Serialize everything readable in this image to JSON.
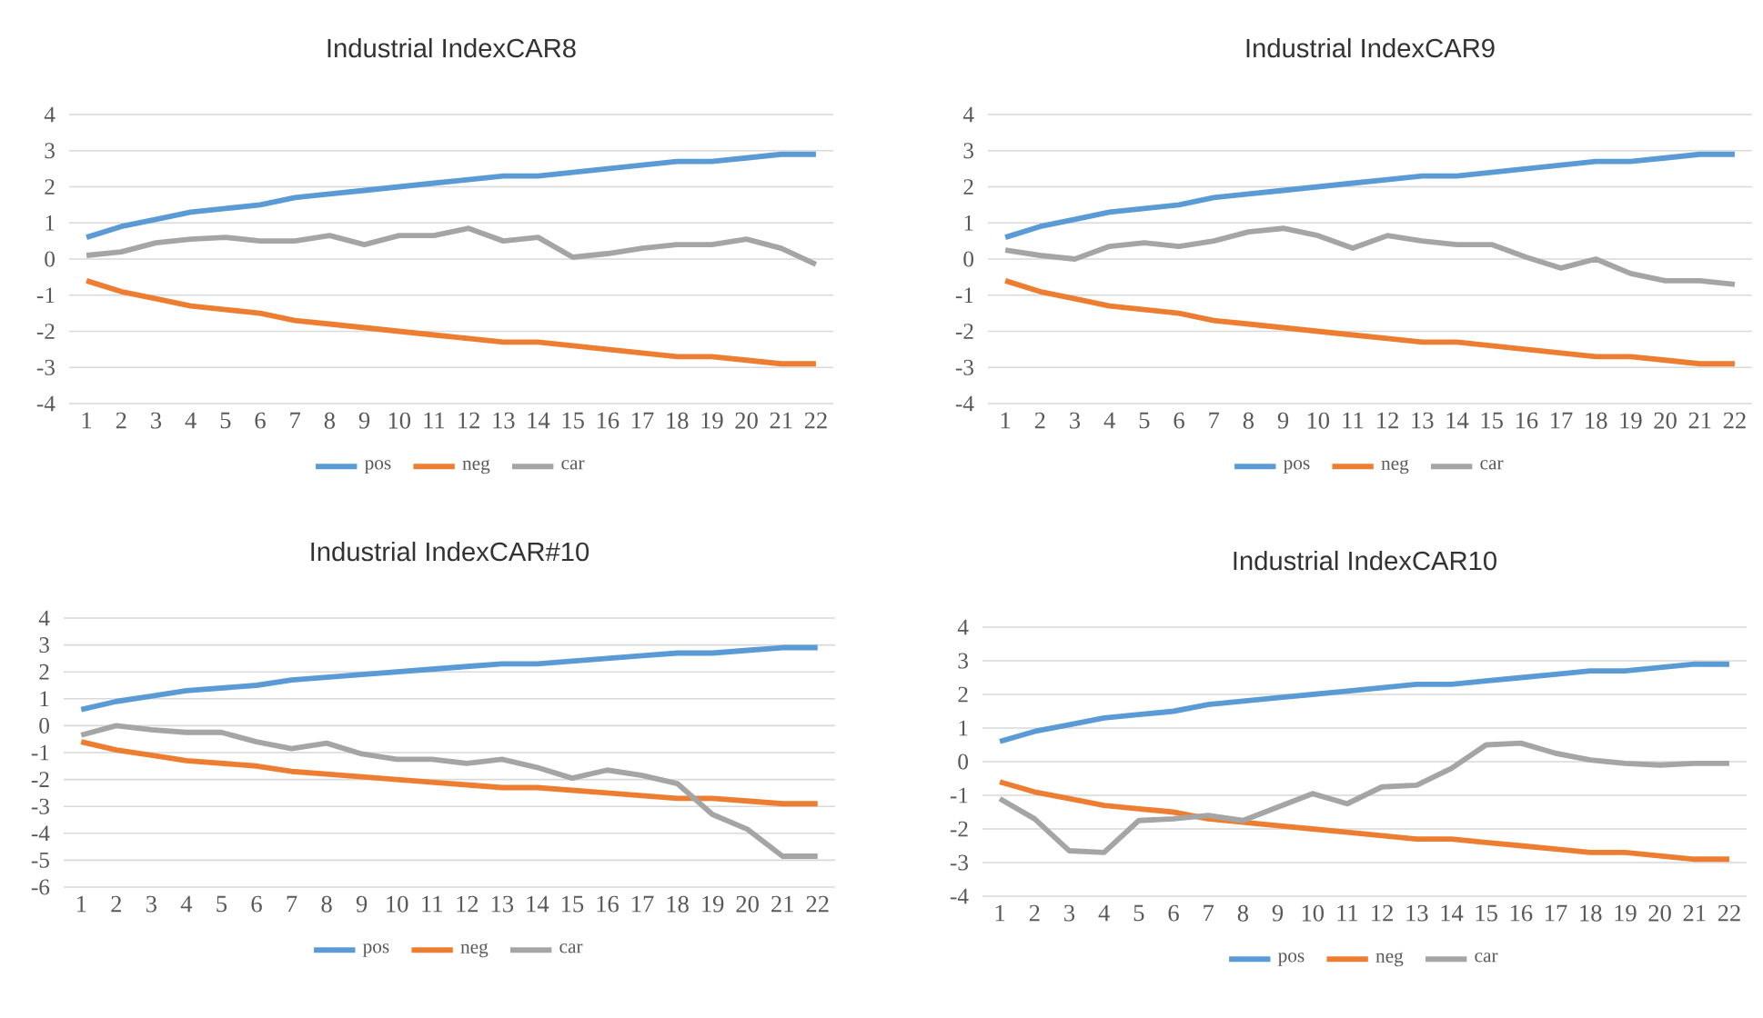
{
  "chart_data": [
    {
      "type": "line",
      "title": "Industrial IndexCAR8",
      "categories": [
        "1",
        "2",
        "3",
        "4",
        "5",
        "6",
        "7",
        "8",
        "9",
        "10",
        "11",
        "12",
        "13",
        "14",
        "15",
        "16",
        "17",
        "18",
        "19",
        "20",
        "21",
        "22"
      ],
      "series": [
        {
          "name": "pos",
          "color": "#5b9bd5",
          "values": [
            0.6,
            0.9,
            1.1,
            1.3,
            1.4,
            1.5,
            1.7,
            1.8,
            1.9,
            2.0,
            2.1,
            2.2,
            2.3,
            2.3,
            2.4,
            2.5,
            2.6,
            2.7,
            2.7,
            2.8,
            2.9,
            2.9
          ]
        },
        {
          "name": "neg",
          "color": "#ed7d31",
          "values": [
            -0.6,
            -0.9,
            -1.1,
            -1.3,
            -1.4,
            -1.5,
            -1.7,
            -1.8,
            -1.9,
            -2.0,
            -2.1,
            -2.2,
            -2.3,
            -2.3,
            -2.4,
            -2.5,
            -2.6,
            -2.7,
            -2.7,
            -2.8,
            -2.9,
            -2.9
          ]
        },
        {
          "name": "car",
          "color": "#a5a5a5",
          "values": [
            0.1,
            0.2,
            0.45,
            0.55,
            0.6,
            0.5,
            0.5,
            0.65,
            0.4,
            0.65,
            0.65,
            0.85,
            0.5,
            0.6,
            0.05,
            0.15,
            0.3,
            0.4,
            0.4,
            0.55,
            0.3,
            -0.15
          ]
        }
      ],
      "ylim": [
        -4,
        4
      ],
      "yticks": [
        -4,
        -3,
        -2,
        -1,
        0,
        1,
        2,
        3,
        4
      ],
      "grid": "y",
      "legend": "bottom"
    },
    {
      "type": "line",
      "title": "Industrial IndexCAR9",
      "categories": [
        "1",
        "2",
        "3",
        "4",
        "5",
        "6",
        "7",
        "8",
        "9",
        "10",
        "11",
        "12",
        "13",
        "14",
        "15",
        "16",
        "17",
        "18",
        "19",
        "20",
        "21",
        "22"
      ],
      "series": [
        {
          "name": "pos",
          "color": "#5b9bd5",
          "values": [
            0.6,
            0.9,
            1.1,
            1.3,
            1.4,
            1.5,
            1.7,
            1.8,
            1.9,
            2.0,
            2.1,
            2.2,
            2.3,
            2.3,
            2.4,
            2.5,
            2.6,
            2.7,
            2.7,
            2.8,
            2.9,
            2.9
          ]
        },
        {
          "name": "neg",
          "color": "#ed7d31",
          "values": [
            -0.6,
            -0.9,
            -1.1,
            -1.3,
            -1.4,
            -1.5,
            -1.7,
            -1.8,
            -1.9,
            -2.0,
            -2.1,
            -2.2,
            -2.3,
            -2.3,
            -2.4,
            -2.5,
            -2.6,
            -2.7,
            -2.7,
            -2.8,
            -2.9,
            -2.9
          ]
        },
        {
          "name": "car",
          "color": "#a5a5a5",
          "values": [
            0.25,
            0.1,
            0.0,
            0.35,
            0.45,
            0.35,
            0.5,
            0.75,
            0.85,
            0.65,
            0.3,
            0.65,
            0.5,
            0.4,
            0.4,
            0.05,
            -0.25,
            0.0,
            -0.4,
            -0.6,
            -0.6,
            -0.7
          ]
        }
      ],
      "ylim": [
        -4,
        4
      ],
      "yticks": [
        -4,
        -3,
        -2,
        -1,
        0,
        1,
        2,
        3,
        4
      ],
      "grid": "y",
      "legend": "bottom"
    },
    {
      "type": "line",
      "title": "Industrial IndexCAR#10",
      "categories": [
        "1",
        "2",
        "3",
        "4",
        "5",
        "6",
        "7",
        "8",
        "9",
        "10",
        "11",
        "12",
        "13",
        "14",
        "15",
        "16",
        "17",
        "18",
        "19",
        "20",
        "21",
        "22"
      ],
      "series": [
        {
          "name": "pos",
          "color": "#5b9bd5",
          "values": [
            0.6,
            0.9,
            1.1,
            1.3,
            1.4,
            1.5,
            1.7,
            1.8,
            1.9,
            2.0,
            2.1,
            2.2,
            2.3,
            2.3,
            2.4,
            2.5,
            2.6,
            2.7,
            2.7,
            2.8,
            2.9,
            2.9
          ]
        },
        {
          "name": "neg",
          "color": "#ed7d31",
          "values": [
            -0.6,
            -0.9,
            -1.1,
            -1.3,
            -1.4,
            -1.5,
            -1.7,
            -1.8,
            -1.9,
            -2.0,
            -2.1,
            -2.2,
            -2.3,
            -2.3,
            -2.4,
            -2.5,
            -2.6,
            -2.7,
            -2.7,
            -2.8,
            -2.9,
            -2.9
          ]
        },
        {
          "name": "car",
          "color": "#a5a5a5",
          "values": [
            -0.35,
            0.0,
            -0.15,
            -0.25,
            -0.25,
            -0.6,
            -0.85,
            -0.65,
            -1.05,
            -1.25,
            -1.25,
            -1.4,
            -1.25,
            -1.55,
            -1.95,
            -1.65,
            -1.85,
            -2.15,
            -3.3,
            -3.85,
            -4.85,
            -4.85
          ]
        }
      ],
      "ylim": [
        -6,
        4
      ],
      "yticks": [
        -6,
        -5,
        -4,
        -3,
        -2,
        -1,
        0,
        1,
        2,
        3,
        4
      ],
      "grid": "y",
      "legend": "bottom"
    },
    {
      "type": "line",
      "title": "Industrial IndexCAR10",
      "categories": [
        "1",
        "2",
        "3",
        "4",
        "5",
        "6",
        "7",
        "8",
        "9",
        "10",
        "11",
        "12",
        "13",
        "14",
        "15",
        "16",
        "17",
        "18",
        "19",
        "20",
        "21",
        "22"
      ],
      "series": [
        {
          "name": "pos",
          "color": "#5b9bd5",
          "values": [
            0.6,
            0.9,
            1.1,
            1.3,
            1.4,
            1.5,
            1.7,
            1.8,
            1.9,
            2.0,
            2.1,
            2.2,
            2.3,
            2.3,
            2.4,
            2.5,
            2.6,
            2.7,
            2.7,
            2.8,
            2.9,
            2.9
          ]
        },
        {
          "name": "neg",
          "color": "#ed7d31",
          "values": [
            -0.6,
            -0.9,
            -1.1,
            -1.3,
            -1.4,
            -1.5,
            -1.7,
            -1.8,
            -1.9,
            -2.0,
            -2.1,
            -2.2,
            -2.3,
            -2.3,
            -2.4,
            -2.5,
            -2.6,
            -2.7,
            -2.7,
            -2.8,
            -2.9,
            -2.9
          ]
        },
        {
          "name": "car",
          "color": "#a5a5a5",
          "values": [
            -1.1,
            -1.7,
            -2.65,
            -2.7,
            -1.75,
            -1.7,
            -1.6,
            -1.75,
            -1.35,
            -0.95,
            -1.25,
            -0.75,
            -0.7,
            -0.2,
            0.5,
            0.55,
            0.25,
            0.05,
            -0.05,
            -0.1,
            -0.05,
            -0.05
          ]
        }
      ],
      "ylim": [
        -4,
        4
      ],
      "yticks": [
        -4,
        -3,
        -2,
        -1,
        0,
        1,
        2,
        3,
        4
      ],
      "grid": "y",
      "legend": "bottom"
    }
  ]
}
